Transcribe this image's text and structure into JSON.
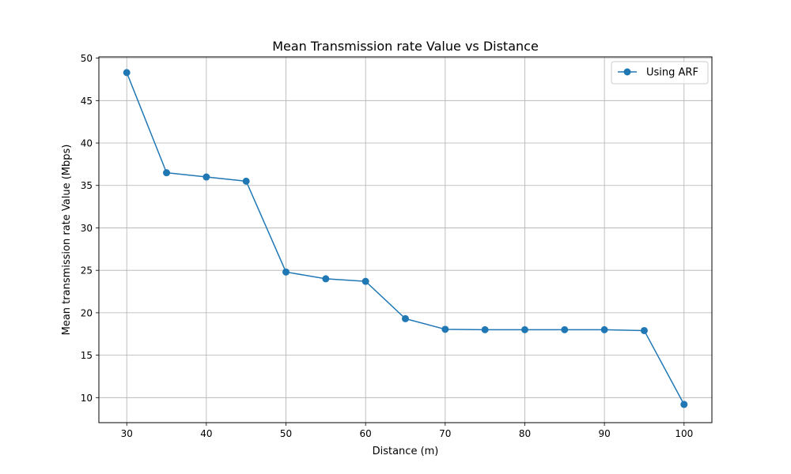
{
  "chart_data": {
    "type": "line",
    "title": "Mean Transmission rate Value vs Distance",
    "xlabel": "Distance (m)",
    "ylabel": "Mean transmission rate Value (Mbps)",
    "xlim": [
      26.5,
      103.5
    ],
    "ylim": [
      7.05,
      50.15
    ],
    "xticks": [
      30,
      40,
      50,
      60,
      70,
      80,
      90,
      100
    ],
    "yticks": [
      10,
      15,
      20,
      25,
      30,
      35,
      40,
      45,
      50
    ],
    "grid": true,
    "legend_position": "top-right",
    "series": [
      {
        "name": "Using ARF",
        "color": "#1f77b4",
        "marker": "circle",
        "x": [
          30,
          35,
          40,
          45,
          50,
          55,
          60,
          65,
          70,
          75,
          80,
          85,
          90,
          95,
          100
        ],
        "y": [
          48.3,
          36.5,
          36.0,
          35.5,
          24.8,
          24.0,
          23.7,
          19.3,
          18.05,
          18.0,
          18.0,
          18.0,
          18.0,
          17.9,
          9.2
        ]
      }
    ]
  }
}
